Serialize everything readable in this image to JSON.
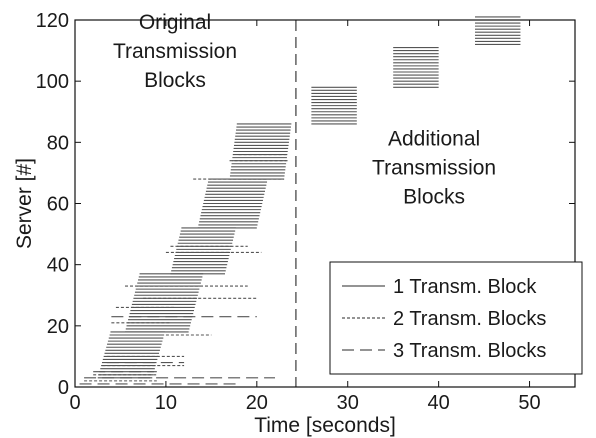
{
  "chart_data": {
    "type": "line",
    "xlabel": "Time [seconds]",
    "ylabel": "Server [#]",
    "xlim": [
      0,
      55
    ],
    "ylim": [
      0,
      120
    ],
    "xticks": [
      0,
      10,
      20,
      30,
      40,
      50
    ],
    "yticks": [
      0,
      20,
      40,
      60,
      80,
      100,
      120
    ],
    "grid": false,
    "legend_position": "bottom-right",
    "divider_x": 24.3,
    "annotations": [
      {
        "id": "original",
        "lines": [
          "Original",
          "Transmission",
          "Blocks"
        ],
        "x": 11,
        "y_top": 117
      },
      {
        "id": "additional",
        "lines": [
          "Additional",
          "Transmission",
          "Blocks"
        ],
        "x": 39.5,
        "y_top": 79
      }
    ],
    "series": [
      {
        "name": "1 Transm. Block",
        "style": "solid",
        "color": "#555555"
      },
      {
        "name": "2 Transm. Blocks",
        "style": "dotted",
        "color": "#555555"
      },
      {
        "name": "3 Transm. Blocks",
        "style": "dashed",
        "color": "#555555"
      }
    ],
    "blocks": [
      {
        "style": "solid",
        "x_start": 2.5,
        "x_end": 8.5,
        "y_bottom": 3,
        "y_top": 18,
        "skew": 1.4
      },
      {
        "style": "solid",
        "x_start": 5.5,
        "x_end": 12.5,
        "y_bottom": 18,
        "y_top": 37,
        "skew": 1.6
      },
      {
        "style": "solid",
        "x_start": 10.5,
        "x_end": 16.5,
        "y_bottom": 37,
        "y_top": 52,
        "skew": 1.2
      },
      {
        "style": "solid",
        "x_start": 13.5,
        "x_end": 20.0,
        "y_bottom": 52,
        "y_top": 68,
        "skew": 1.2
      },
      {
        "style": "solid",
        "x_start": 17.0,
        "x_end": 23.0,
        "y_bottom": 68,
        "y_top": 86,
        "skew": 0.8
      },
      {
        "style": "solid",
        "x_start": 26.0,
        "x_end": 31.0,
        "y_bottom": 86,
        "y_top": 98,
        "skew": 0
      },
      {
        "style": "solid",
        "x_start": 35.0,
        "x_end": 40.0,
        "y_bottom": 98,
        "y_top": 111,
        "skew": 0
      },
      {
        "style": "solid",
        "x_start": 44.0,
        "x_end": 49.0,
        "y_bottom": 112,
        "y_top": 121,
        "skew": 0
      }
    ],
    "segments": [
      {
        "style": "dotted",
        "x_start": 1.0,
        "x_end": 9.0,
        "y": 2
      },
      {
        "style": "dotted",
        "x_start": 2.0,
        "x_end": 9.0,
        "y": 4
      },
      {
        "style": "dotted",
        "x_start": 3.0,
        "x_end": 12.0,
        "y": 7
      },
      {
        "style": "dotted",
        "x_start": 3.5,
        "x_end": 12.0,
        "y": 10
      },
      {
        "style": "dotted",
        "x_start": 4.5,
        "x_end": 15.0,
        "y": 17
      },
      {
        "style": "dotted",
        "x_start": 4.0,
        "x_end": 10.5,
        "y": 21
      },
      {
        "style": "dotted",
        "x_start": 4.5,
        "x_end": 11.0,
        "y": 26
      },
      {
        "style": "dotted",
        "x_start": 7.5,
        "x_end": 20.0,
        "y": 29
      },
      {
        "style": "dotted",
        "x_start": 5.5,
        "x_end": 19.0,
        "y": 33
      },
      {
        "style": "dotted",
        "x_start": 10.0,
        "x_end": 20.5,
        "y": 44
      },
      {
        "style": "dotted",
        "x_start": 10.5,
        "x_end": 19.0,
        "y": 46
      },
      {
        "style": "dotted",
        "x_start": 13.0,
        "x_end": 23.0,
        "y": 68
      },
      {
        "style": "dotted",
        "x_start": 17.0,
        "x_end": 23.5,
        "y": 74
      },
      {
        "style": "dotted",
        "x_start": 18.0,
        "x_end": 23.5,
        "y": 76
      },
      {
        "style": "dashed",
        "x_start": 0.5,
        "x_end": 18.0,
        "y": 1
      },
      {
        "style": "dashed",
        "x_start": 1.0,
        "x_end": 22.0,
        "y": 3
      },
      {
        "style": "dashed",
        "x_start": 2.0,
        "x_end": 9.0,
        "y": 5
      },
      {
        "style": "dashed",
        "x_start": 3.5,
        "x_end": 12.0,
        "y": 8
      },
      {
        "style": "dashed",
        "x_start": 4.0,
        "x_end": 20.0,
        "y": 23
      }
    ]
  }
}
